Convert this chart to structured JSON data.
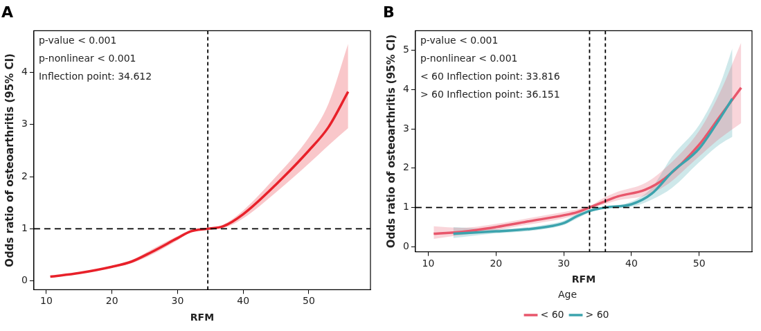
{
  "chart_data": [
    {
      "type": "line",
      "title": "A",
      "xlabel": "RFM",
      "ylabel": "Odds ratio of osteoarthritis (95% CI)",
      "xlim": [
        8.1,
        59.4
      ],
      "xticks": [
        10,
        20,
        30,
        40,
        50
      ],
      "ylim": [
        -0.17,
        4.8
      ],
      "yticks": [
        0,
        1,
        2,
        3,
        4
      ],
      "grid": false,
      "legend": false,
      "annotations": [
        "p-value < 0.001",
        "p-nonlinear < 0.001",
        "Inflection point: 34.612"
      ],
      "ref_lines": [
        {
          "axis": "x",
          "value": 34.612,
          "line_style": "dashed"
        },
        {
          "axis": "y",
          "value": 1,
          "line_style": "dashed"
        }
      ],
      "series": [
        {
          "color": "#e8212a",
          "x": [
            10.6,
            15,
            20,
            23,
            26,
            30,
            32,
            34.6,
            37,
            40,
            45,
            50,
            53,
            56
          ],
          "values": [
            0.08,
            0.15,
            0.27,
            0.37,
            0.55,
            0.82,
            0.95,
            1.0,
            1.05,
            1.28,
            1.85,
            2.5,
            2.95,
            3.63
          ],
          "lower": [
            0.07,
            0.14,
            0.25,
            0.34,
            0.5,
            0.78,
            0.93,
            1.0,
            1.02,
            1.2,
            1.7,
            2.25,
            2.6,
            2.93
          ],
          "upper": [
            0.09,
            0.16,
            0.29,
            0.4,
            0.6,
            0.86,
            0.97,
            1.0,
            1.08,
            1.35,
            2.0,
            2.75,
            3.4,
            4.55
          ]
        }
      ]
    },
    {
      "type": "line",
      "title": "B",
      "xlabel": "RFM",
      "ylabel": "Odds ratio of osteoarthritis (95% CI)",
      "legend_title": "Age",
      "xlim": [
        8.1,
        57.8
      ],
      "xticks": [
        10,
        20,
        30,
        40,
        50
      ],
      "ylim": [
        -0.13,
        5.5
      ],
      "yticks": [
        0,
        1,
        2,
        3,
        4,
        5
      ],
      "grid": false,
      "legend": "bottom",
      "annotations": [
        "p-value < 0.001",
        "p-nonlinear < 0.001",
        "< 60 Inflection point: 33.816",
        "> 60 Inflection point: 36.151"
      ],
      "ref_lines": [
        {
          "axis": "x",
          "value": 33.816,
          "line_style": "dashed"
        },
        {
          "axis": "x",
          "value": 36.151,
          "line_style": "dashed"
        },
        {
          "axis": "y",
          "value": 1,
          "line_style": "dashed"
        }
      ],
      "series": [
        {
          "name": "< 60",
          "color": "#e8566b",
          "x": [
            10.8,
            15,
            20,
            25,
            30,
            32,
            33.8,
            36,
            38,
            42,
            45,
            50,
            53,
            56.2
          ],
          "values": [
            0.33,
            0.38,
            0.5,
            0.65,
            0.8,
            0.88,
            1.0,
            1.15,
            1.28,
            1.45,
            1.75,
            2.6,
            3.3,
            4.05
          ],
          "lower": [
            0.2,
            0.3,
            0.42,
            0.57,
            0.72,
            0.82,
            0.97,
            1.08,
            1.18,
            1.3,
            1.55,
            2.3,
            2.75,
            3.15
          ],
          "upper": [
            0.52,
            0.48,
            0.58,
            0.73,
            0.88,
            0.95,
            1.03,
            1.25,
            1.4,
            1.62,
            2.0,
            2.95,
            3.9,
            5.2
          ]
        },
        {
          "name": "> 60",
          "color": "#3ba3ad",
          "x": [
            13.7,
            20,
            25,
            28,
            30,
            32,
            34,
            36.2,
            40,
            43,
            46,
            50,
            53,
            54.9
          ],
          "values": [
            0.33,
            0.39,
            0.45,
            0.52,
            0.6,
            0.78,
            0.92,
            1.0,
            1.08,
            1.35,
            1.9,
            2.5,
            3.25,
            3.77
          ],
          "lower": [
            0.22,
            0.34,
            0.4,
            0.47,
            0.55,
            0.72,
            0.88,
            0.98,
            1.02,
            1.2,
            1.5,
            2.15,
            2.6,
            2.8
          ],
          "upper": [
            0.5,
            0.45,
            0.5,
            0.58,
            0.66,
            0.84,
            0.96,
            1.02,
            1.15,
            1.5,
            2.3,
            3.1,
            4.1,
            5.05
          ]
        }
      ]
    }
  ]
}
